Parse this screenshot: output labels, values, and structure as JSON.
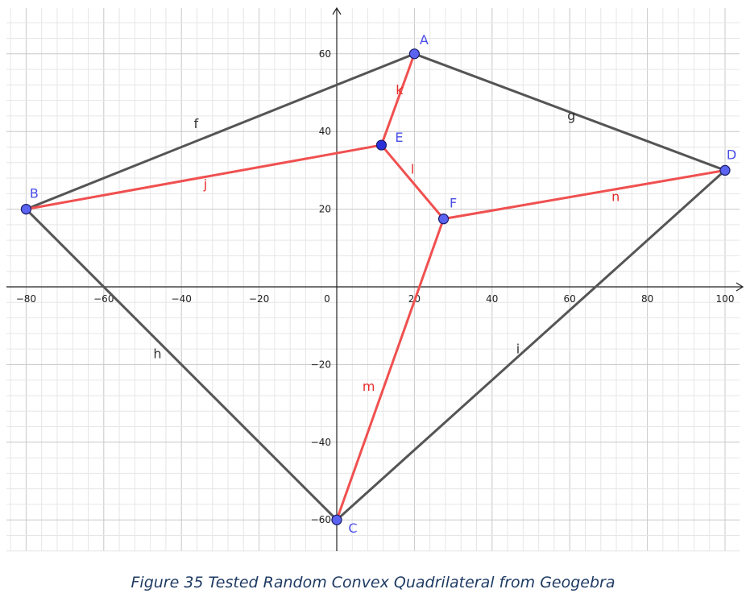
{
  "x_ticks": [
    -80,
    -60,
    -40,
    -20,
    0,
    20,
    40,
    60,
    80,
    100
  ],
  "y_ticks": [
    -60,
    -40,
    -20,
    20,
    40,
    60
  ],
  "origin_label": "0",
  "points": [
    {
      "name": "A",
      "x": 20,
      "y": 60
    },
    {
      "name": "B",
      "x": -80,
      "y": 20
    },
    {
      "name": "C",
      "x": 0,
      "y": -60
    },
    {
      "name": "D",
      "x": 100,
      "y": 30
    },
    {
      "name": "E",
      "x": 11.5,
      "y": 36.5
    },
    {
      "name": "F",
      "x": 27.5,
      "y": 17.5
    }
  ],
  "segments": [
    {
      "name": "f",
      "from": "B",
      "to": "A",
      "color": "gray"
    },
    {
      "name": "g",
      "from": "A",
      "to": "D",
      "color": "gray"
    },
    {
      "name": "h",
      "from": "B",
      "to": "C",
      "color": "gray"
    },
    {
      "name": "i",
      "from": "C",
      "to": "D",
      "color": "gray"
    },
    {
      "name": "j",
      "from": "B",
      "to": "E",
      "color": "red"
    },
    {
      "name": "k",
      "from": "A",
      "to": "E",
      "color": "red"
    },
    {
      "name": "l",
      "from": "E",
      "to": "F",
      "color": "red"
    },
    {
      "name": "m",
      "from": "C",
      "to": "F",
      "color": "red"
    },
    {
      "name": "n",
      "from": "F",
      "to": "D",
      "color": "red"
    }
  ],
  "colors": {
    "gray_segment": "#555555",
    "red_segment": "#f05050",
    "point_fill": "#5a64f0",
    "point_fill_dark": "#2a30d8",
    "grid_major": "#c8c8c8",
    "grid_minor": "#e6e6e6",
    "label_blue": "#4a4ee8",
    "label_red": "#e82a2a"
  },
  "caption": "Figure 35 Tested Random Convex Quadrilateral from Geogebra"
}
